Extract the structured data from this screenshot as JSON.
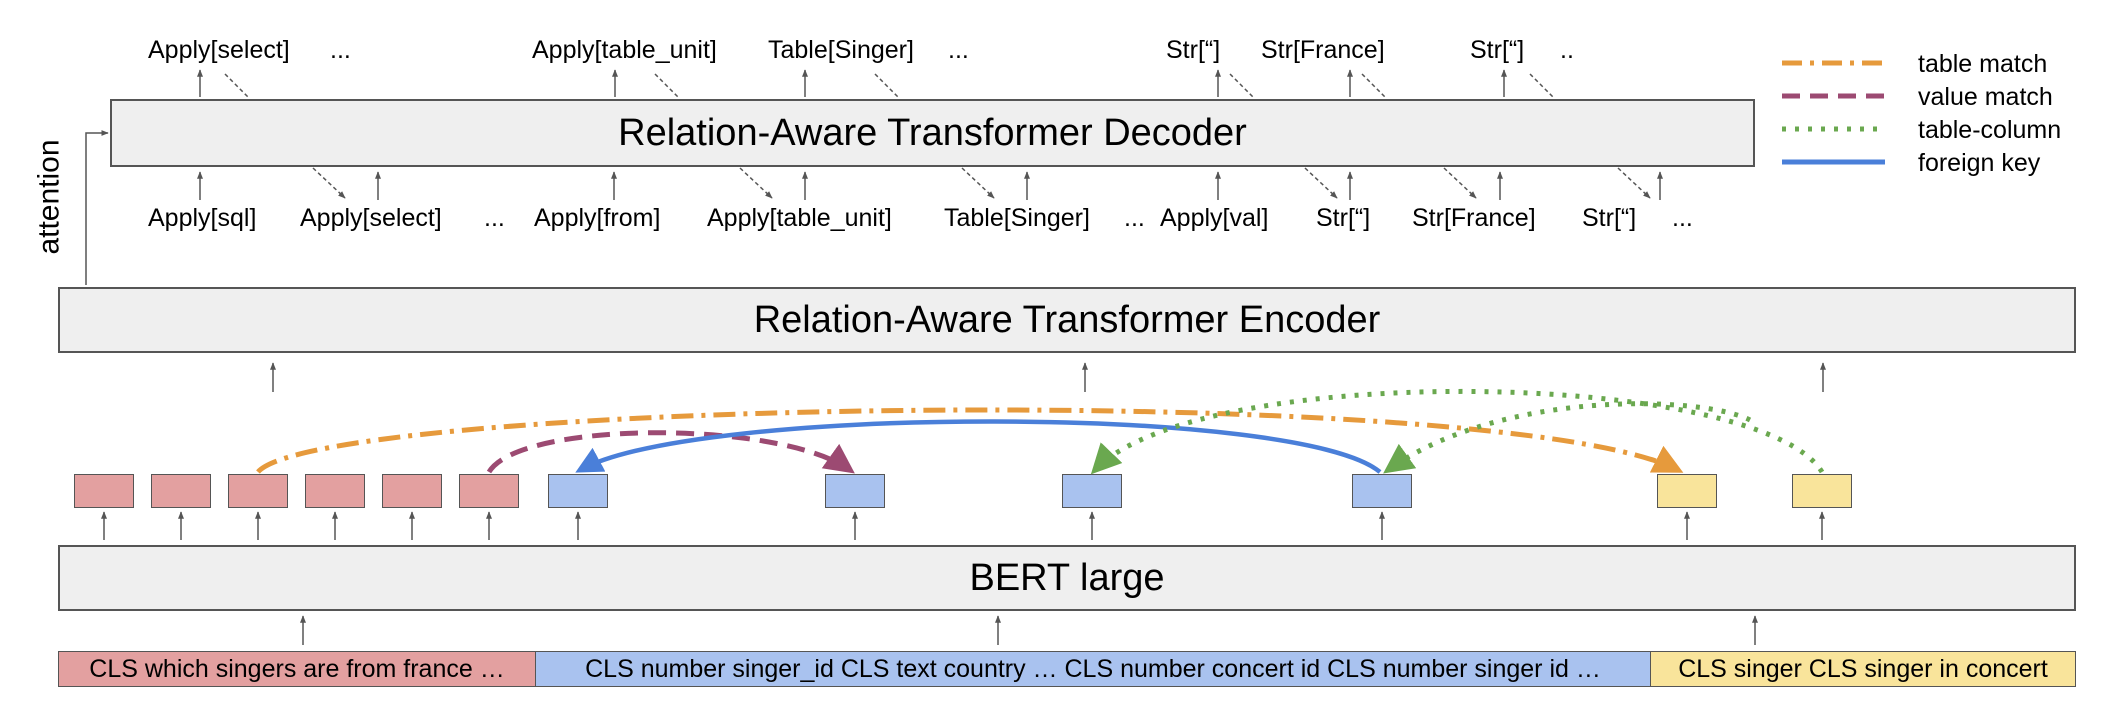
{
  "decoder": {
    "title": "Relation-Aware Transformer Decoder",
    "outputs": [
      "Apply[select]",
      "...",
      "Apply[table_unit]",
      "Table[Singer]",
      "...",
      "Str[“]",
      "Str[France]",
      "Str[“]",
      ".."
    ],
    "inputs": [
      "Apply[sql]",
      "Apply[select]",
      "...",
      "Apply[from]",
      "Apply[table_unit]",
      "Table[Singer]",
      "...",
      "Apply[val]",
      "Str[“]",
      "Str[France]",
      "Str[“]",
      "..."
    ]
  },
  "encoder": {
    "title": "Relation-Aware Transformer Encoder"
  },
  "attention_label": "attention",
  "bert": {
    "title": "BERT large"
  },
  "input_segments": {
    "question": "CLS which singers are from france …",
    "columns": "CLS number singer_id CLS text country … CLS number concert id CLS number singer id …",
    "tables": "CLS singer CLS singer in concert"
  },
  "legend": [
    {
      "label": "table match",
      "color": "#e69a3c",
      "style": "dash-dot"
    },
    {
      "label": "value match",
      "color": "#9c4a72",
      "style": "dashed"
    },
    {
      "label": "table-column",
      "color": "#6aa84f",
      "style": "dotted"
    },
    {
      "label": "foreign key",
      "color": "#4a7fd9",
      "style": "solid"
    }
  ]
}
